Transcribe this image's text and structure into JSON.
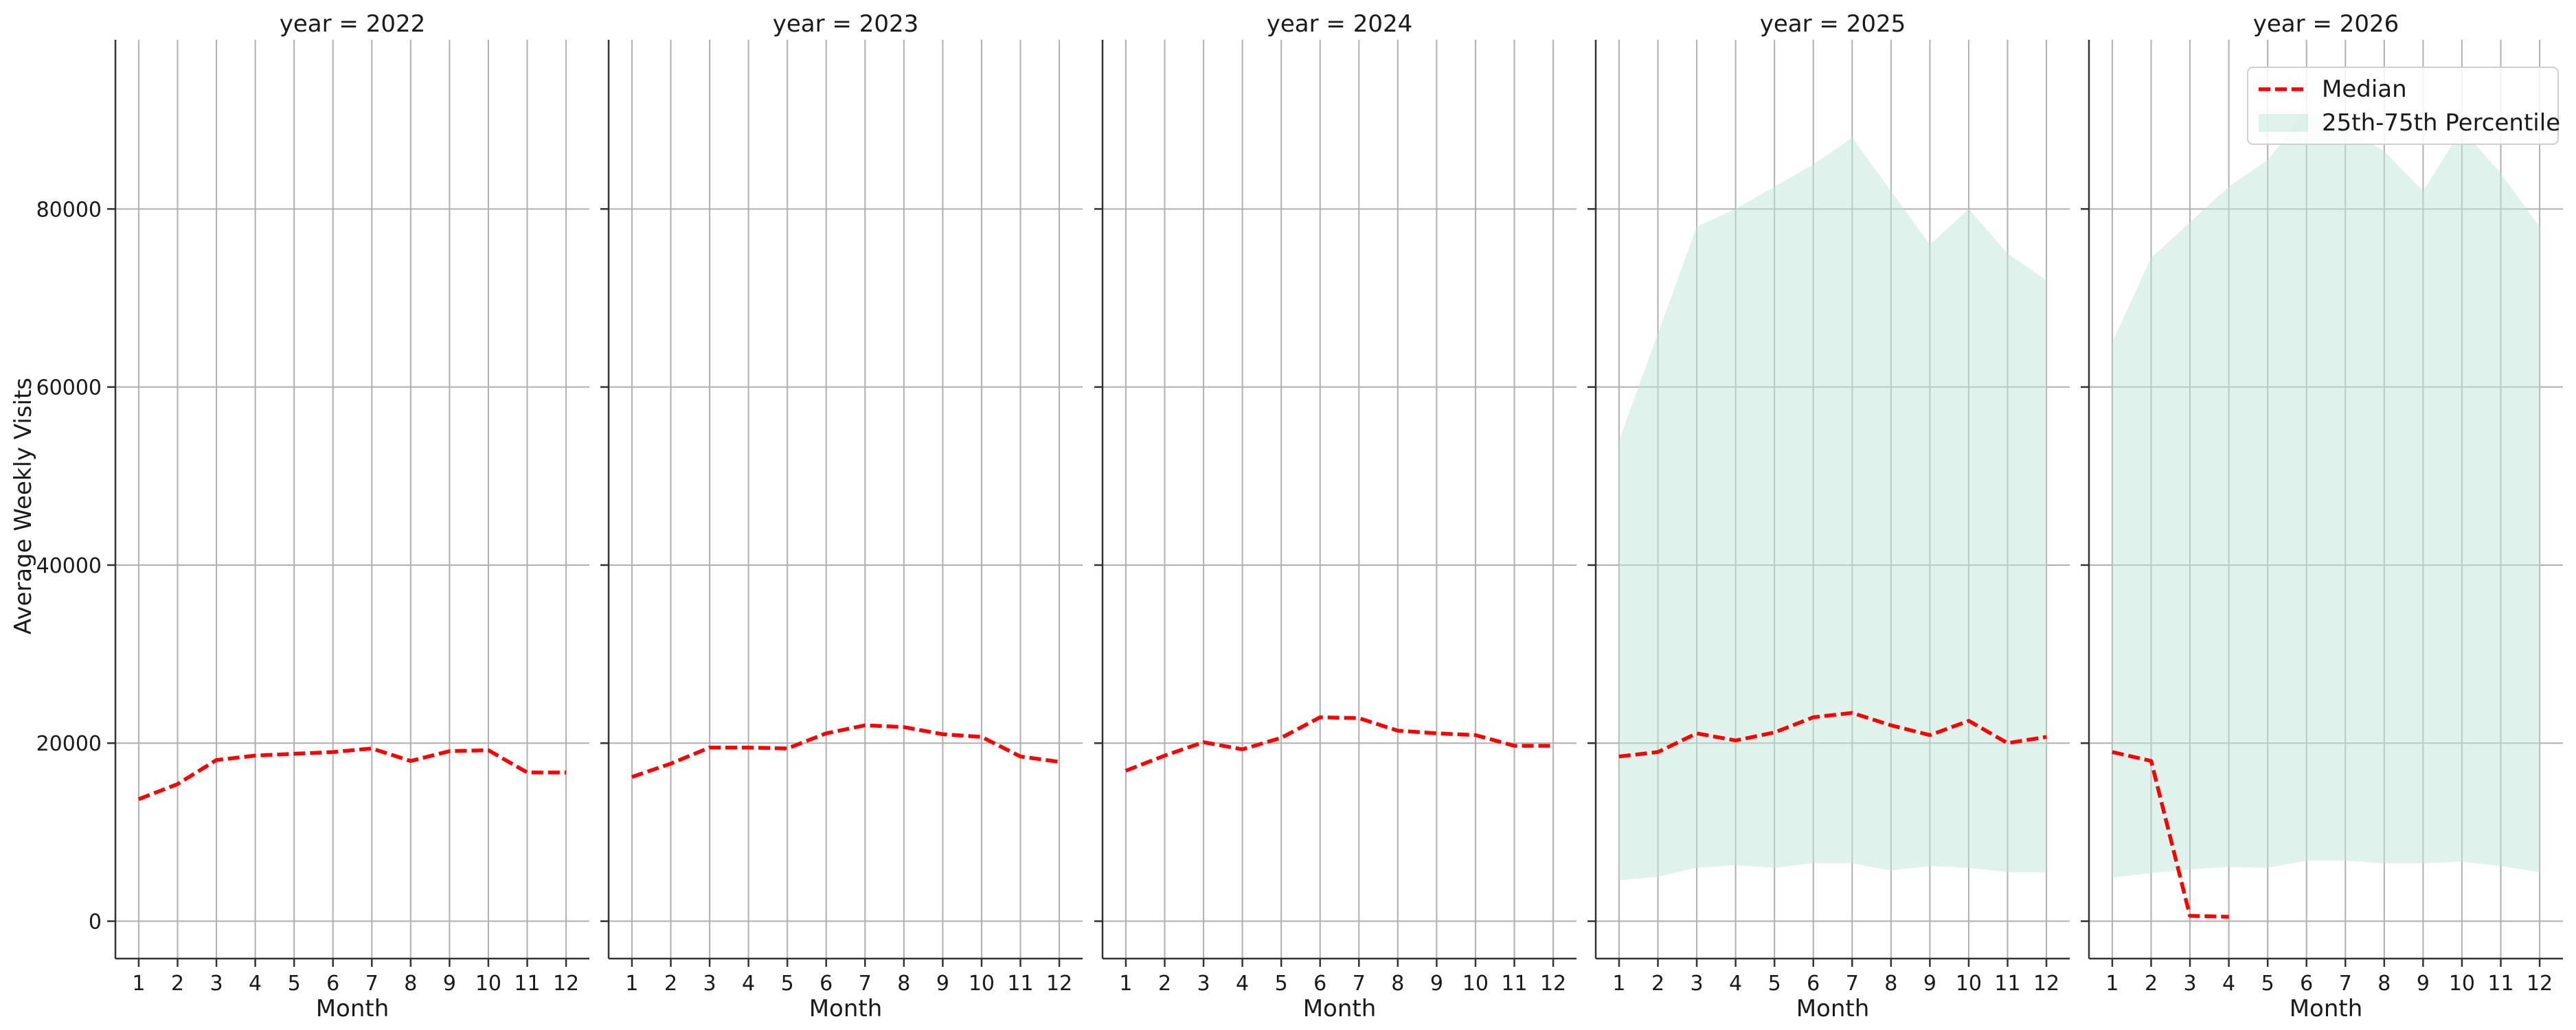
{
  "chart_data": {
    "type": "line",
    "ylabel": "Average Weekly Visits",
    "xlabel": "Month",
    "x": [
      1,
      2,
      3,
      4,
      5,
      6,
      7,
      8,
      9,
      10,
      11,
      12
    ],
    "ylim": [
      -4200,
      99000
    ],
    "xlim": [
      0.4,
      12.6
    ],
    "yticks": [
      0,
      20000,
      40000,
      60000,
      80000
    ],
    "grid": true,
    "sharey": true,
    "legend": {
      "location": "top-right",
      "entries": [
        {
          "label": "Median",
          "color": "#ff0000",
          "style": "dashed-line"
        },
        {
          "label": "25th-75th Percentile",
          "color": "#bfe6d9",
          "style": "band"
        }
      ]
    },
    "panels": [
      {
        "title": "year = 2022",
        "median": [
          13700,
          15400,
          18100,
          18600,
          18800,
          19000,
          19400,
          18000,
          19100,
          19200,
          16700,
          16700
        ]
      },
      {
        "title": "year = 2023",
        "median": [
          16200,
          17700,
          19500,
          19500,
          19400,
          21100,
          22000,
          21800,
          21000,
          20700,
          18500,
          17900
        ]
      },
      {
        "title": "year = 2024",
        "median": [
          16900,
          18600,
          20100,
          19300,
          20600,
          22900,
          22800,
          21400,
          21100,
          20900,
          19700,
          19700
        ]
      },
      {
        "title": "year = 2025",
        "median": [
          18500,
          19000,
          21100,
          20300,
          21200,
          22900,
          23400,
          22000,
          20900,
          22500,
          20000,
          20700
        ],
        "q25": [
          4600,
          5000,
          6000,
          6300,
          6000,
          6500,
          6500,
          5700,
          6200,
          6000,
          5500,
          5500
        ],
        "q75": [
          54000,
          66000,
          78000,
          80000,
          82500,
          85000,
          88000,
          82000,
          76000,
          80000,
          75000,
          72000
        ]
      },
      {
        "title": "year = 2026",
        "median": [
          19000,
          18000,
          600,
          500,
          null,
          null,
          null,
          null,
          null,
          null,
          null,
          null
        ],
        "q25": [
          4900,
          5400,
          5800,
          6100,
          6000,
          6800,
          6800,
          6500,
          6500,
          6700,
          6200,
          5500
        ],
        "q75": [
          65000,
          74500,
          78500,
          82500,
          85500,
          91000,
          89000,
          86500,
          82000,
          89000,
          84000,
          78000
        ]
      }
    ]
  }
}
